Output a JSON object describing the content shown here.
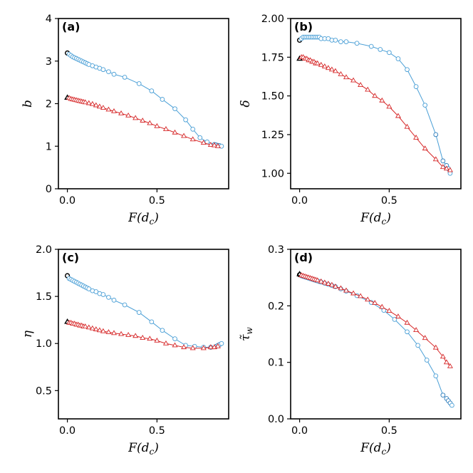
{
  "chart_data": [
    {
      "type": "line",
      "panel_label": "(a)",
      "xlabel": "F(d_c)",
      "ylabel": "b",
      "xlim": [
        -0.05,
        0.9
      ],
      "ylim": [
        0,
        4
      ],
      "xticks": [
        0.0,
        0.5
      ],
      "xtick_labels": [
        "0.0",
        "0.5"
      ],
      "yticks": [
        0,
        1,
        2,
        3,
        4
      ],
      "ytick_labels": [
        "0",
        "1",
        "2",
        "3",
        "4"
      ],
      "series": [
        {
          "marker": "circle",
          "color": "#4a9fd6",
          "dense_color": "#2b7bba",
          "start_marker_color": "#000000",
          "x": [
            0.0,
            0.01,
            0.02,
            0.03,
            0.04,
            0.05,
            0.06,
            0.07,
            0.08,
            0.09,
            0.1,
            0.11,
            0.12,
            0.14,
            0.16,
            0.18,
            0.2,
            0.23,
            0.26,
            0.32,
            0.4,
            0.47,
            0.53,
            0.6,
            0.66,
            0.7,
            0.74,
            0.78,
            0.82,
            0.83,
            0.84,
            0.85,
            0.86
          ],
          "y": [
            3.19,
            3.16,
            3.13,
            3.1,
            3.08,
            3.06,
            3.04,
            3.02,
            3.0,
            2.98,
            2.96,
            2.94,
            2.92,
            2.89,
            2.86,
            2.83,
            2.8,
            2.75,
            2.69,
            2.62,
            2.47,
            2.3,
            2.1,
            1.88,
            1.62,
            1.4,
            1.2,
            1.1,
            1.04,
            1.03,
            1.02,
            1.01,
            1.0
          ]
        },
        {
          "marker": "triangle",
          "color": "#d62728",
          "start_marker_color": "#000000",
          "x": [
            0.0,
            0.01,
            0.02,
            0.03,
            0.04,
            0.05,
            0.06,
            0.07,
            0.08,
            0.09,
            0.1,
            0.12,
            0.14,
            0.16,
            0.18,
            0.2,
            0.23,
            0.26,
            0.3,
            0.34,
            0.38,
            0.42,
            0.46,
            0.5,
            0.55,
            0.6,
            0.65,
            0.7,
            0.76,
            0.8,
            0.82,
            0.84
          ],
          "y": [
            2.14,
            2.13,
            2.11,
            2.1,
            2.09,
            2.08,
            2.07,
            2.06,
            2.05,
            2.04,
            2.03,
            2.01,
            1.99,
            1.96,
            1.93,
            1.9,
            1.86,
            1.82,
            1.77,
            1.72,
            1.66,
            1.6,
            1.54,
            1.47,
            1.4,
            1.32,
            1.24,
            1.16,
            1.08,
            1.03,
            1.02,
            1.0
          ]
        }
      ]
    },
    {
      "type": "line",
      "panel_label": "(b)",
      "xlabel": "F(d_c)",
      "ylabel": "δ",
      "xlim": [
        -0.05,
        0.9
      ],
      "ylim": [
        0.9,
        2.0
      ],
      "xticks": [
        0.0,
        0.5
      ],
      "xtick_labels": [
        "0.0",
        "0.5"
      ],
      "yticks": [
        1.0,
        1.25,
        1.5,
        1.75,
        2.0
      ],
      "ytick_labels": [
        "1.00",
        "1.25",
        "1.50",
        "1.75",
        "2.00"
      ],
      "series": [
        {
          "marker": "circle",
          "color": "#4a9fd6",
          "dense_color": "#2b7bba",
          "start_marker_color": "#000000",
          "x": [
            0.0,
            0.01,
            0.02,
            0.03,
            0.04,
            0.05,
            0.06,
            0.07,
            0.08,
            0.09,
            0.1,
            0.11,
            0.12,
            0.14,
            0.16,
            0.18,
            0.2,
            0.23,
            0.26,
            0.32,
            0.4,
            0.45,
            0.5,
            0.55,
            0.6,
            0.65,
            0.7,
            0.76,
            0.8,
            0.82,
            0.83,
            0.84
          ],
          "y": [
            1.86,
            1.87,
            1.88,
            1.88,
            1.88,
            1.88,
            1.88,
            1.88,
            1.88,
            1.88,
            1.88,
            1.88,
            1.87,
            1.87,
            1.87,
            1.86,
            1.86,
            1.85,
            1.85,
            1.84,
            1.82,
            1.8,
            1.78,
            1.74,
            1.67,
            1.56,
            1.44,
            1.25,
            1.08,
            1.05,
            1.03,
            1.0
          ]
        },
        {
          "marker": "triangle",
          "color": "#d62728",
          "start_marker_color": "#000000",
          "x": [
            0.0,
            0.01,
            0.02,
            0.03,
            0.04,
            0.05,
            0.06,
            0.07,
            0.08,
            0.09,
            0.1,
            0.12,
            0.14,
            0.16,
            0.18,
            0.2,
            0.23,
            0.26,
            0.3,
            0.34,
            0.38,
            0.42,
            0.46,
            0.5,
            0.55,
            0.6,
            0.65,
            0.7,
            0.76,
            0.8,
            0.82,
            0.84
          ],
          "y": [
            1.74,
            1.75,
            1.75,
            1.74,
            1.74,
            1.73,
            1.73,
            1.72,
            1.72,
            1.71,
            1.71,
            1.7,
            1.69,
            1.68,
            1.67,
            1.66,
            1.64,
            1.62,
            1.6,
            1.57,
            1.54,
            1.5,
            1.47,
            1.43,
            1.37,
            1.3,
            1.23,
            1.16,
            1.09,
            1.04,
            1.03,
            1.02
          ]
        }
      ]
    },
    {
      "type": "line",
      "panel_label": "(c)",
      "xlabel": "F(d_c)",
      "ylabel": "η",
      "xlim": [
        -0.05,
        0.9
      ],
      "ylim": [
        0.2,
        2.0
      ],
      "xticks": [
        0.0,
        0.5
      ],
      "xtick_labels": [
        "0.0",
        "0.5"
      ],
      "yticks": [
        0.5,
        1.0,
        1.5,
        2.0
      ],
      "ytick_labels": [
        "0.5",
        "1.0",
        "1.5",
        "2.0"
      ],
      "series": [
        {
          "marker": "circle",
          "color": "#4a9fd6",
          "dense_color": "#2b7bba",
          "start_marker_color": "#000000",
          "x": [
            0.0,
            0.01,
            0.02,
            0.03,
            0.04,
            0.05,
            0.06,
            0.07,
            0.08,
            0.09,
            0.1,
            0.11,
            0.12,
            0.14,
            0.16,
            0.18,
            0.2,
            0.23,
            0.26,
            0.32,
            0.4,
            0.47,
            0.53,
            0.6,
            0.66,
            0.71,
            0.76,
            0.8,
            0.83,
            0.84,
            0.85,
            0.86
          ],
          "y": [
            1.72,
            1.69,
            1.68,
            1.67,
            1.66,
            1.65,
            1.64,
            1.63,
            1.62,
            1.61,
            1.6,
            1.59,
            1.58,
            1.56,
            1.55,
            1.53,
            1.52,
            1.49,
            1.46,
            1.41,
            1.33,
            1.23,
            1.14,
            1.05,
            0.98,
            0.97,
            0.96,
            0.96,
            0.97,
            0.98,
            0.99,
            1.0
          ]
        },
        {
          "marker": "triangle",
          "color": "#d62728",
          "start_marker_color": "#000000",
          "x": [
            0.0,
            0.01,
            0.02,
            0.03,
            0.04,
            0.05,
            0.06,
            0.07,
            0.08,
            0.09,
            0.1,
            0.12,
            0.14,
            0.16,
            0.18,
            0.2,
            0.23,
            0.26,
            0.3,
            0.34,
            0.38,
            0.42,
            0.46,
            0.5,
            0.55,
            0.6,
            0.65,
            0.7,
            0.76,
            0.8,
            0.82,
            0.84
          ],
          "y": [
            1.23,
            1.22,
            1.22,
            1.21,
            1.21,
            1.2,
            1.2,
            1.19,
            1.19,
            1.18,
            1.18,
            1.17,
            1.16,
            1.15,
            1.14,
            1.13,
            1.12,
            1.11,
            1.1,
            1.09,
            1.08,
            1.06,
            1.05,
            1.03,
            1.0,
            0.98,
            0.96,
            0.95,
            0.95,
            0.96,
            0.96,
            0.97
          ]
        }
      ]
    },
    {
      "type": "line",
      "panel_label": "(d)",
      "xlabel": "F(d_c)",
      "ylabel": "τ̃_w",
      "xlim": [
        -0.05,
        0.9
      ],
      "ylim": [
        0.0,
        0.3
      ],
      "xticks": [
        0.0,
        0.5
      ],
      "xtick_labels": [
        "0.0",
        "0.5"
      ],
      "yticks": [
        0.0,
        0.1,
        0.2,
        0.3
      ],
      "ytick_labels": [
        "0.0",
        "0.1",
        "0.2",
        "0.3"
      ],
      "series": [
        {
          "marker": "circle",
          "color": "#4a9fd6",
          "dense_color": "#2b7bba",
          "start_marker_color": "#000000",
          "x": [
            0.0,
            0.01,
            0.02,
            0.03,
            0.04,
            0.05,
            0.06,
            0.07,
            0.08,
            0.09,
            0.1,
            0.11,
            0.12,
            0.14,
            0.16,
            0.18,
            0.2,
            0.23,
            0.26,
            0.32,
            0.4,
            0.47,
            0.53,
            0.6,
            0.66,
            0.71,
            0.76,
            0.8,
            0.82,
            0.83,
            0.84,
            0.85
          ],
          "y": [
            0.255,
            0.253,
            0.252,
            0.251,
            0.25,
            0.249,
            0.248,
            0.247,
            0.246,
            0.245,
            0.244,
            0.243,
            0.242,
            0.24,
            0.238,
            0.236,
            0.234,
            0.23,
            0.226,
            0.218,
            0.206,
            0.192,
            0.176,
            0.154,
            0.13,
            0.104,
            0.076,
            0.042,
            0.036,
            0.032,
            0.028,
            0.024
          ]
        },
        {
          "marker": "triangle",
          "color": "#d62728",
          "start_marker_color": "#000000",
          "x": [
            0.0,
            0.01,
            0.02,
            0.03,
            0.04,
            0.05,
            0.06,
            0.07,
            0.08,
            0.09,
            0.1,
            0.12,
            0.14,
            0.16,
            0.18,
            0.2,
            0.23,
            0.26,
            0.3,
            0.34,
            0.38,
            0.42,
            0.46,
            0.5,
            0.55,
            0.6,
            0.65,
            0.7,
            0.76,
            0.8,
            0.82,
            0.84
          ],
          "y": [
            0.256,
            0.254,
            0.253,
            0.252,
            0.251,
            0.25,
            0.249,
            0.248,
            0.247,
            0.246,
            0.245,
            0.243,
            0.241,
            0.239,
            0.237,
            0.234,
            0.231,
            0.227,
            0.222,
            0.217,
            0.211,
            0.205,
            0.198,
            0.191,
            0.181,
            0.17,
            0.157,
            0.143,
            0.126,
            0.11,
            0.1,
            0.093
          ]
        }
      ]
    }
  ]
}
